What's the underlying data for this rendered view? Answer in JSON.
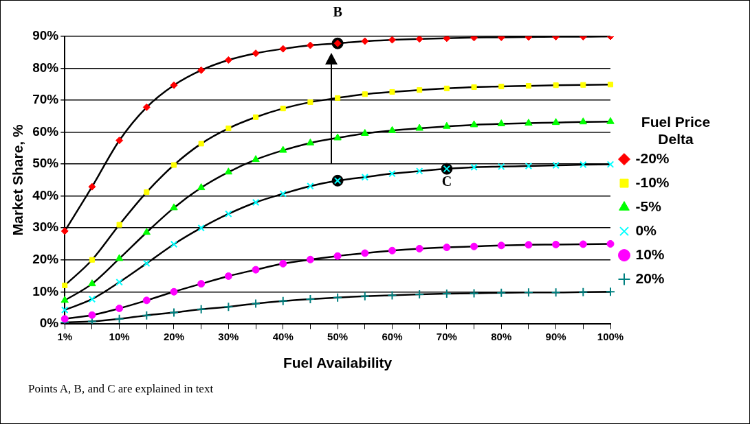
{
  "chart_data": {
    "type": "line",
    "xlabel": "Fuel Availability",
    "ylabel": "Market Share, %",
    "legend_title": "Fuel Price Delta",
    "categories": [
      "1%",
      null,
      "10%",
      null,
      "20%",
      null,
      "30%",
      null,
      "40%",
      null,
      "50%",
      null,
      "60%",
      null,
      "70%",
      null,
      "80%",
      null,
      "90%",
      null,
      "100%"
    ],
    "ylim": [
      0,
      90
    ],
    "yticks": [
      {
        "value": 0,
        "label": "0%"
      },
      {
        "value": 10,
        "label": "10%"
      },
      {
        "value": 20,
        "label": "20%"
      },
      {
        "value": 30,
        "label": "30%"
      },
      {
        "value": 40,
        "label": "40%"
      },
      {
        "value": 50,
        "label": "50%"
      },
      {
        "value": 60,
        "label": "60%"
      },
      {
        "value": 70,
        "label": "70%"
      },
      {
        "value": 80,
        "label": "80%"
      },
      {
        "value": 90,
        "label": "90%"
      }
    ],
    "grid": "y",
    "legend": "right",
    "series": [
      {
        "name": "-20%",
        "color": "#ff0000",
        "marker": "diamond",
        "values": [
          29.0,
          42.9,
          57.4,
          67.8,
          74.7,
          79.4,
          82.6,
          84.7,
          86.1,
          87.2,
          87.8,
          88.5,
          88.9,
          89.2,
          89.4,
          89.6,
          89.7,
          89.8,
          89.9,
          89.9,
          90.0
        ]
      },
      {
        "name": "-10%",
        "color": "#ffff00",
        "marker": "square",
        "values": [
          12.0,
          20.0,
          31.0,
          41.2,
          49.7,
          56.4,
          61.2,
          64.7,
          67.4,
          69.4,
          70.7,
          71.9,
          72.6,
          73.2,
          73.7,
          74.1,
          74.3,
          74.5,
          74.7,
          74.8,
          74.9
        ]
      },
      {
        "name": "-5%",
        "color": "#00ff00",
        "marker": "triangle",
        "values": [
          7.3,
          12.5,
          20.4,
          28.6,
          36.3,
          42.6,
          47.5,
          51.4,
          54.3,
          56.6,
          58.2,
          59.6,
          60.5,
          61.2,
          61.8,
          62.3,
          62.6,
          62.8,
          63.0,
          63.2,
          63.3
        ]
      },
      {
        "name": "0%",
        "color": "#00ffff",
        "marker": "cross",
        "values": [
          4.3,
          7.7,
          13.0,
          18.9,
          24.9,
          30.0,
          34.4,
          38.0,
          40.7,
          43.1,
          44.8,
          45.9,
          47.0,
          47.8,
          48.5,
          49.0,
          49.2,
          49.4,
          49.6,
          49.8,
          49.9
        ]
      },
      {
        "name": "10%",
        "color": "#ff00ff",
        "marker": "circle",
        "values": [
          1.5,
          2.7,
          4.8,
          7.3,
          10.0,
          12.5,
          14.9,
          16.9,
          18.8,
          20.1,
          21.2,
          22.1,
          22.9,
          23.5,
          23.9,
          24.2,
          24.5,
          24.7,
          24.8,
          24.9,
          25.0
        ]
      },
      {
        "name": "20%",
        "color": "#008080",
        "marker": "plus",
        "values": [
          0.4,
          0.7,
          1.5,
          2.6,
          3.5,
          4.5,
          5.3,
          6.3,
          7.1,
          7.7,
          8.2,
          8.6,
          8.9,
          9.2,
          9.4,
          9.5,
          9.7,
          9.8,
          9.8,
          9.9,
          10.0
        ]
      },
      {
        "type": "scatter",
        "color": "#000000",
        "marker": "circle",
        "x": [
          "50%",
          "50%",
          "70%"
        ],
        "values": [
          87.8,
          44.8,
          48.5
        ]
      }
    ],
    "annotations": [
      {
        "text": "B",
        "x": "50%",
        "y": 87.8
      },
      {
        "text": "C",
        "x": "70%",
        "y": 48.5
      },
      "Points A, B, and C are explained in text"
    ]
  }
}
